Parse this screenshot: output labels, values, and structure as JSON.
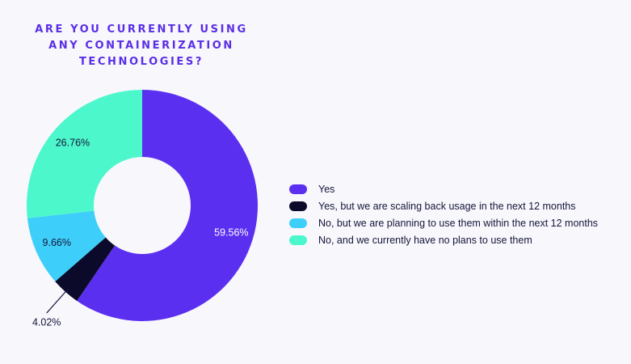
{
  "chart_data": {
    "type": "pie",
    "donut": true,
    "title": [
      "ARE YOU CURRENTLY USING",
      "ANY CONTAINERIZATION",
      "TECHNOLOGIES?"
    ],
    "slices": [
      {
        "label": "Yes",
        "value": 59.56,
        "value_label": "59.56%",
        "color": "#5b2ff0"
      },
      {
        "label": "Yes, but we are scaling back usage in the next 12 months",
        "value": 4.02,
        "value_label": "4.02%",
        "color": "#0b0a2b"
      },
      {
        "label": "No, but we are planning to use them within the next 12 months",
        "value": 9.66,
        "value_label": "9.66%",
        "color": "#3dcffa"
      },
      {
        "label": "No, and we currently have no plans to use them",
        "value": 26.76,
        "value_label": "26.76%",
        "color": "#4cf7cc"
      }
    ],
    "legend_position": "right",
    "start": "top",
    "direction": "clockwise"
  }
}
